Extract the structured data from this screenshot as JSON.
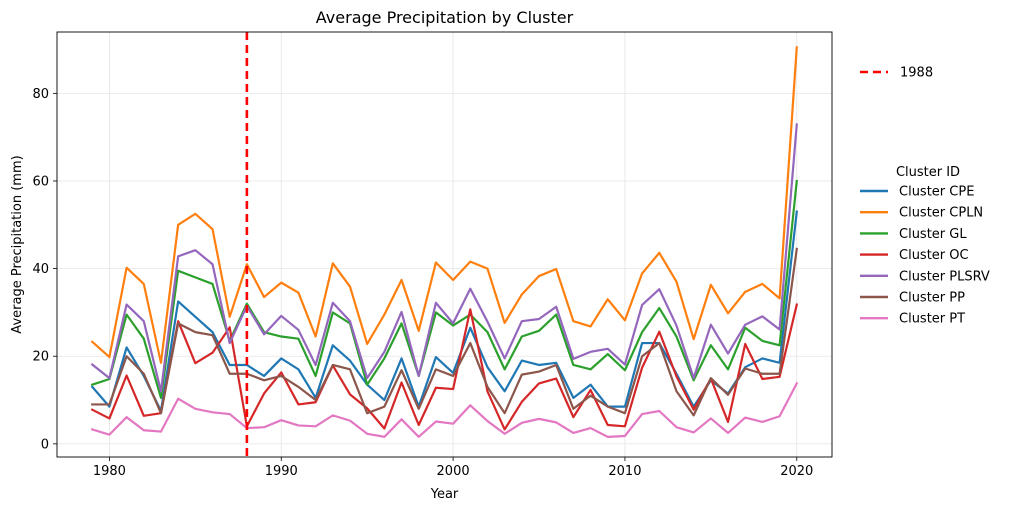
{
  "chart_data": {
    "type": "line",
    "title": "Average Precipitation by Cluster",
    "xlabel": "Year",
    "ylabel": "Average Precipitation (mm)",
    "xlim": [
      1976.95,
      2022.05
    ],
    "ylim": [
      -3,
      94
    ],
    "xticks": [
      1980,
      1990,
      2000,
      2010,
      2020
    ],
    "yticks": [
      0,
      20,
      40,
      60,
      80
    ],
    "grid": true,
    "x": [
      1979,
      1980,
      1981,
      1982,
      1983,
      1984,
      1985,
      1986,
      1987,
      1988,
      1989,
      1990,
      1991,
      1992,
      1993,
      1994,
      1995,
      1996,
      1997,
      1998,
      1999,
      2000,
      2001,
      2002,
      2003,
      2004,
      2005,
      2006,
      2007,
      2008,
      2009,
      2010,
      2011,
      2012,
      2013,
      2014,
      2015,
      2016,
      2017,
      2018,
      2019,
      2020
    ],
    "vline": {
      "x": 1988,
      "label": "1988",
      "color": "#ff0000"
    },
    "legend_title": "Cluster ID",
    "series": [
      {
        "name": "Cluster CPE",
        "color": "#1f77b4",
        "values": [
          13,
          8.5,
          22,
          15.5,
          7.5,
          32.5,
          29,
          25.5,
          18,
          18,
          15.5,
          19.5,
          17,
          10.5,
          22.5,
          19,
          13.5,
          10,
          19.5,
          8.5,
          19.8,
          16.2,
          26.5,
          17.5,
          12,
          19,
          18,
          18.5,
          10.5,
          13.5,
          8.5,
          8.5,
          23,
          23,
          16,
          8.5,
          14.5,
          11.5,
          17.5,
          19.5,
          18.5,
          53
        ]
      },
      {
        "name": "Cluster CPLN",
        "color": "#ff7f0e",
        "values": [
          23.3,
          19.8,
          40.2,
          36.5,
          18.5,
          50,
          52.5,
          49,
          29,
          41,
          33.5,
          36.8,
          34.5,
          24.5,
          41.2,
          35.9,
          22.8,
          29.5,
          37.4,
          25.8,
          41.4,
          37.4,
          41.6,
          40,
          27.6,
          34.1,
          38.3,
          39.9,
          28,
          26.8,
          33,
          28.2,
          38.9,
          43.6,
          37,
          23.9,
          36.3,
          29.8,
          34.7,
          36.5,
          33.2,
          90.5
        ]
      },
      {
        "name": "Cluster GL",
        "color": "#2ca02c",
        "values": [
          13.5,
          14.8,
          29.5,
          24,
          10.5,
          39.5,
          38,
          36.5,
          23.5,
          32,
          25.5,
          24.5,
          24,
          15.5,
          30,
          27.5,
          13.5,
          19.5,
          27.5,
          15.5,
          30,
          27,
          29.5,
          25.5,
          17,
          24.5,
          25.8,
          29.5,
          18,
          17,
          20.5,
          16.8,
          25.5,
          31,
          24.5,
          14.5,
          22.5,
          17,
          26.5,
          23.5,
          22.5,
          60
        ]
      },
      {
        "name": "Cluster OC",
        "color": "#d62728",
        "values": [
          7.8,
          5.8,
          15.6,
          6.4,
          7,
          28,
          18.4,
          20.8,
          26.6,
          4,
          11.5,
          16.3,
          9,
          9.5,
          17.9,
          11.3,
          8.1,
          3.5,
          14,
          4.3,
          12.8,
          12.5,
          30.7,
          12,
          3.3,
          9.6,
          13.8,
          14.9,
          6.1,
          12.3,
          4.3,
          4,
          17.4,
          25.6,
          15.4,
          7.8,
          14.9,
          5,
          22.8,
          14.8,
          15.3,
          31.8
        ]
      },
      {
        "name": "Cluster PLSRV",
        "color": "#9467bd",
        "values": [
          18.1,
          15,
          31.8,
          28,
          12,
          42.8,
          44.2,
          41,
          23,
          31.5,
          25,
          29.2,
          26,
          18,
          32.2,
          28,
          15,
          21,
          30.1,
          15.5,
          32.2,
          27.5,
          35.4,
          27.9,
          19.5,
          28,
          28.5,
          31.3,
          19.4,
          21,
          21.7,
          18.1,
          31.7,
          35.3,
          27,
          15,
          27.2,
          20.6,
          27.2,
          29.1,
          26.1,
          72.9
        ]
      },
      {
        "name": "Cluster PP",
        "color": "#8c564b",
        "values": [
          9,
          9,
          20,
          16,
          7,
          27.5,
          25.5,
          24.8,
          16,
          16,
          14.5,
          15.5,
          13,
          10,
          18,
          17,
          7,
          8.5,
          16.8,
          8,
          17,
          15.5,
          23,
          13,
          7,
          15.8,
          16.5,
          18,
          8,
          11,
          8.5,
          7,
          20,
          23,
          12,
          6.5,
          15,
          11.2,
          17.2,
          16,
          16,
          44.5
        ]
      },
      {
        "name": "Cluster PT",
        "color": "#e377c2",
        "values": [
          3.3,
          2.1,
          6.1,
          3.1,
          2.8,
          10.3,
          8,
          7.2,
          6.8,
          3.6,
          3.8,
          5.4,
          4.2,
          4,
          6.5,
          5.3,
          2.3,
          1.6,
          5.6,
          1.6,
          5.1,
          4.6,
          8.8,
          5.2,
          2.3,
          4.8,
          5.7,
          4.9,
          2.5,
          3.6,
          1.6,
          1.8,
          6.8,
          7.5,
          3.8,
          2.6,
          5.8,
          2.5,
          6,
          5,
          6.3,
          13.8
        ]
      }
    ]
  }
}
